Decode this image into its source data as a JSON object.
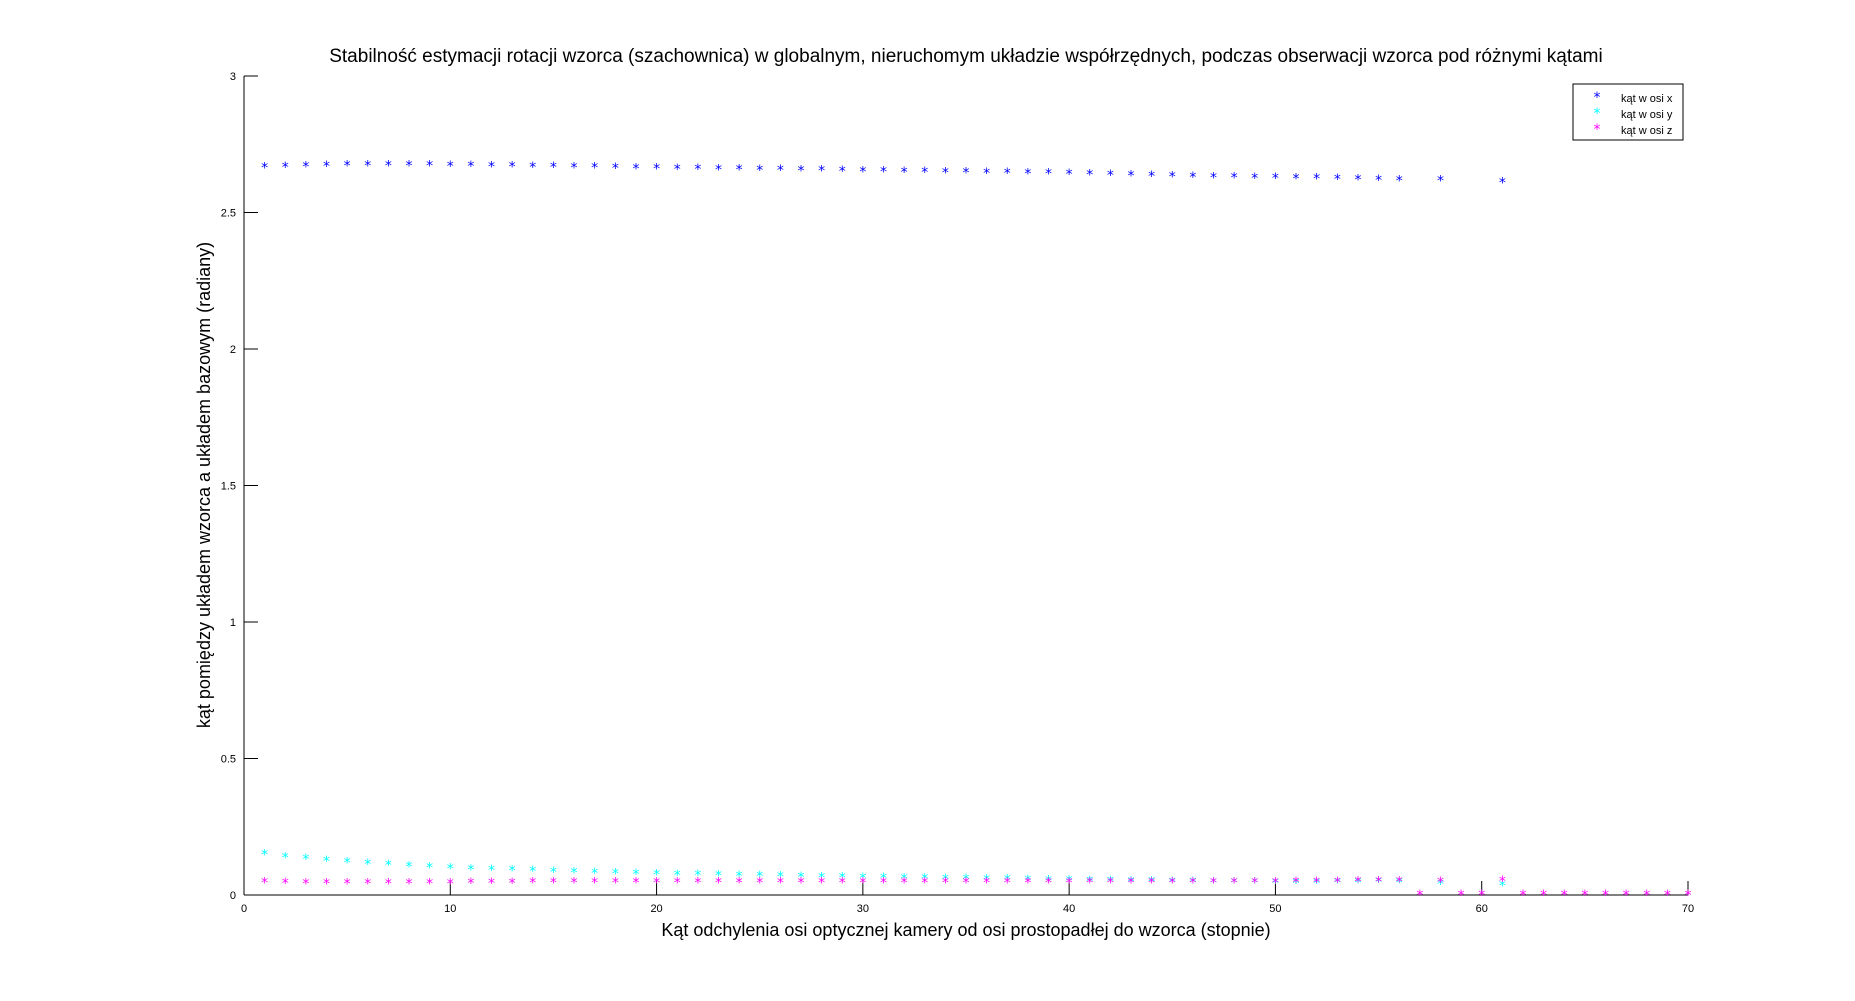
{
  "chart_data": {
    "type": "scatter",
    "title": "Stabilność estymacji rotacji wzorca (szachownica) w globalnym, nieruchomym układzie współrzędnych, podczas obserwacji wzorca pod różnymi kątami",
    "xlabel": "Kąt odchylenia osi optycznej kamery od osi prostopadłej do wzorca (stopnie)",
    "ylabel": "kąt pomiędzy układem wzorca a układem bazowym (radiany)",
    "xlim": [
      0,
      70
    ],
    "ylim": [
      0,
      3
    ],
    "xticks": [
      0,
      10,
      20,
      30,
      40,
      50,
      60,
      70
    ],
    "yticks": [
      0,
      0.5,
      1,
      1.5,
      2,
      2.5,
      3
    ],
    "xtick_labels": [
      "0",
      "10",
      "20",
      "30",
      "40",
      "50",
      "60",
      "70"
    ],
    "ytick_labels": [
      "0",
      "0.5",
      "1",
      "1.5",
      "2",
      "2.5",
      "3"
    ],
    "grid": false,
    "legend_position": "top-right",
    "marker": "*",
    "series": [
      {
        "name": "kąt w osi x",
        "color": "#0000ff",
        "x": [
          1,
          2,
          3,
          4,
          5,
          6,
          7,
          8,
          9,
          10,
          11,
          12,
          13,
          14,
          15,
          16,
          17,
          18,
          19,
          20,
          21,
          22,
          23,
          24,
          25,
          26,
          27,
          28,
          29,
          30,
          31,
          32,
          33,
          34,
          35,
          36,
          37,
          38,
          39,
          40,
          41,
          42,
          43,
          44,
          45,
          46,
          47,
          48,
          49,
          50,
          51,
          52,
          53,
          54,
          55,
          56,
          58,
          61
        ],
        "y": [
          2.665,
          2.667,
          2.669,
          2.671,
          2.672,
          2.673,
          2.673,
          2.673,
          2.672,
          2.671,
          2.67,
          2.669,
          2.668,
          2.667,
          2.666,
          2.665,
          2.664,
          2.663,
          2.662,
          2.661,
          2.66,
          2.659,
          2.658,
          2.657,
          2.656,
          2.655,
          2.654,
          2.653,
          2.652,
          2.651,
          2.65,
          2.649,
          2.648,
          2.647,
          2.646,
          2.645,
          2.644,
          2.643,
          2.642,
          2.641,
          2.64,
          2.638,
          2.636,
          2.634,
          2.632,
          2.63,
          2.629,
          2.628,
          2.627,
          2.626,
          2.625,
          2.624,
          2.622,
          2.62,
          2.619,
          2.618,
          2.617,
          2.61
        ]
      },
      {
        "name": "kąt w osi y",
        "color": "#00ffff",
        "x": [
          1,
          2,
          3,
          4,
          5,
          6,
          7,
          8,
          9,
          10,
          11,
          12,
          13,
          14,
          15,
          16,
          17,
          18,
          19,
          20,
          21,
          22,
          23,
          24,
          25,
          26,
          27,
          28,
          29,
          30,
          31,
          32,
          33,
          34,
          35,
          36,
          37,
          38,
          39,
          40,
          41,
          42,
          43,
          44,
          45,
          46,
          47,
          48,
          49,
          50,
          51,
          52,
          53,
          54,
          55,
          56,
          58,
          61
        ],
        "y": [
          0.148,
          0.138,
          0.131,
          0.125,
          0.119,
          0.114,
          0.109,
          0.104,
          0.1,
          0.097,
          0.094,
          0.092,
          0.089,
          0.087,
          0.085,
          0.083,
          0.081,
          0.079,
          0.077,
          0.076,
          0.074,
          0.073,
          0.071,
          0.07,
          0.069,
          0.068,
          0.066,
          0.065,
          0.064,
          0.063,
          0.062,
          0.061,
          0.06,
          0.059,
          0.058,
          0.057,
          0.056,
          0.055,
          0.054,
          0.053,
          0.052,
          0.051,
          0.05,
          0.049,
          0.048,
          0.047,
          0.046,
          0.046,
          0.045,
          0.044,
          0.044,
          0.044,
          0.045,
          0.046,
          0.047,
          0.046,
          0.04,
          0.035
        ]
      },
      {
        "name": "kąt w osi z",
        "color": "#ff00ff",
        "x": [
          1,
          2,
          3,
          4,
          5,
          6,
          7,
          8,
          9,
          10,
          11,
          12,
          13,
          14,
          15,
          16,
          17,
          18,
          19,
          20,
          21,
          22,
          23,
          24,
          25,
          26,
          27,
          28,
          29,
          30,
          31,
          32,
          33,
          34,
          35,
          36,
          37,
          38,
          39,
          40,
          41,
          42,
          43,
          44,
          45,
          46,
          47,
          48,
          49,
          50,
          51,
          52,
          53,
          54,
          55,
          56,
          57,
          58,
          59,
          60,
          61,
          62,
          63,
          64,
          65,
          66,
          67,
          68,
          69,
          70
        ],
        "y": [
          0.045,
          0.044,
          0.043,
          0.043,
          0.042,
          0.042,
          0.042,
          0.042,
          0.043,
          0.043,
          0.044,
          0.044,
          0.044,
          0.045,
          0.045,
          0.045,
          0.045,
          0.046,
          0.046,
          0.046,
          0.046,
          0.046,
          0.046,
          0.046,
          0.046,
          0.046,
          0.046,
          0.046,
          0.046,
          0.046,
          0.046,
          0.046,
          0.046,
          0.046,
          0.046,
          0.046,
          0.046,
          0.046,
          0.046,
          0.046,
          0.046,
          0.046,
          0.046,
          0.046,
          0.046,
          0.046,
          0.046,
          0.046,
          0.046,
          0.046,
          0.047,
          0.047,
          0.048,
          0.049,
          0.05,
          0.05,
          0,
          0.048,
          0,
          0,
          0.052,
          0,
          0,
          0,
          0,
          0,
          0,
          0,
          0,
          0
        ]
      }
    ]
  }
}
